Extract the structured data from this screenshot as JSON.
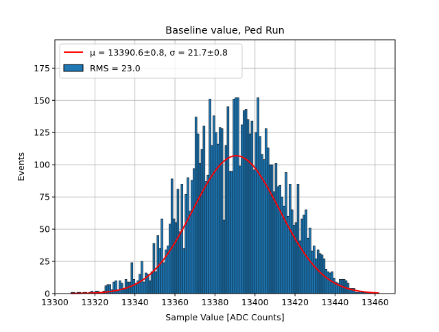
{
  "chart_data": {
    "type": "bar",
    "title": "Baseline value, Ped Run",
    "xlabel": "Sample Value [ADC Counts]",
    "ylabel": "Events",
    "xlim": [
      13300,
      13470
    ],
    "ylim": [
      0,
      197
    ],
    "xticks": [
      "13300",
      "13320",
      "13340",
      "13360",
      "13380",
      "13400",
      "13420",
      "13440",
      "13460"
    ],
    "yticks": [
      "0",
      "25",
      "50",
      "75",
      "100",
      "125",
      "150",
      "175"
    ],
    "xtick_values": [
      13300,
      13320,
      13340,
      13360,
      13380,
      13400,
      13420,
      13440,
      13460
    ],
    "ytick_values": [
      0,
      25,
      50,
      75,
      100,
      125,
      150,
      175
    ],
    "grid": true,
    "legend_position": "top-left",
    "histogram": {
      "name": "RMS = 23.0",
      "color": "#1f77b4",
      "edge_color": "#000000",
      "x_start": 13308,
      "bin_width": 1,
      "counts": [
        1,
        1,
        0,
        1,
        1,
        0,
        1,
        1,
        0,
        1,
        2,
        1,
        2,
        2,
        1,
        1,
        2,
        6,
        7,
        7,
        3,
        9,
        10,
        3,
        10,
        8,
        4,
        11,
        9,
        9,
        24,
        11,
        8,
        10,
        15,
        25,
        9,
        16,
        15,
        10,
        17,
        39,
        17,
        45,
        35,
        58,
        24,
        34,
        37,
        54,
        89,
        58,
        55,
        81,
        48,
        85,
        35,
        77,
        90,
        64,
        88,
        97,
        137,
        124,
        101,
        112,
        130,
        87,
        92,
        151,
        115,
        138,
        125,
        116,
        129,
        128,
        57,
        115,
        145,
        95,
        95,
        151,
        152,
        152,
        99,
        131,
        142,
        143,
        135,
        124,
        134,
        96,
        125,
        152,
        122,
        108,
        104,
        128,
        113,
        100,
        100,
        79,
        101,
        83,
        84,
        75,
        68,
        94,
        60,
        85,
        65,
        53,
        55,
        85,
        41,
        58,
        61,
        65,
        43,
        51,
        33,
        37,
        27,
        34,
        31,
        30,
        27,
        19,
        17,
        16,
        17,
        12,
        9,
        8,
        11,
        11,
        11,
        10,
        8,
        4,
        4,
        4,
        1,
        1,
        2,
        1,
        1,
        1,
        1,
        1,
        1
      ]
    },
    "fit": {
      "name": "$\\mu = 13390.6 \\pm 0.8$, $\\sigma = 21.7 \\pm 0.8$",
      "legend_label": "μ = 13390.6±0.8, σ = 21.7±0.8",
      "color": "#ff0000",
      "type": "gaussian",
      "mu": 13390.6,
      "sigma": 21.7,
      "amplitude": 107,
      "x_range": [
        13308,
        13462
      ]
    },
    "series": [
      {
        "name": "RMS = 23.0"
      },
      {
        "name": "μ = 13390.6±0.8, σ = 21.7±0.8"
      }
    ]
  }
}
